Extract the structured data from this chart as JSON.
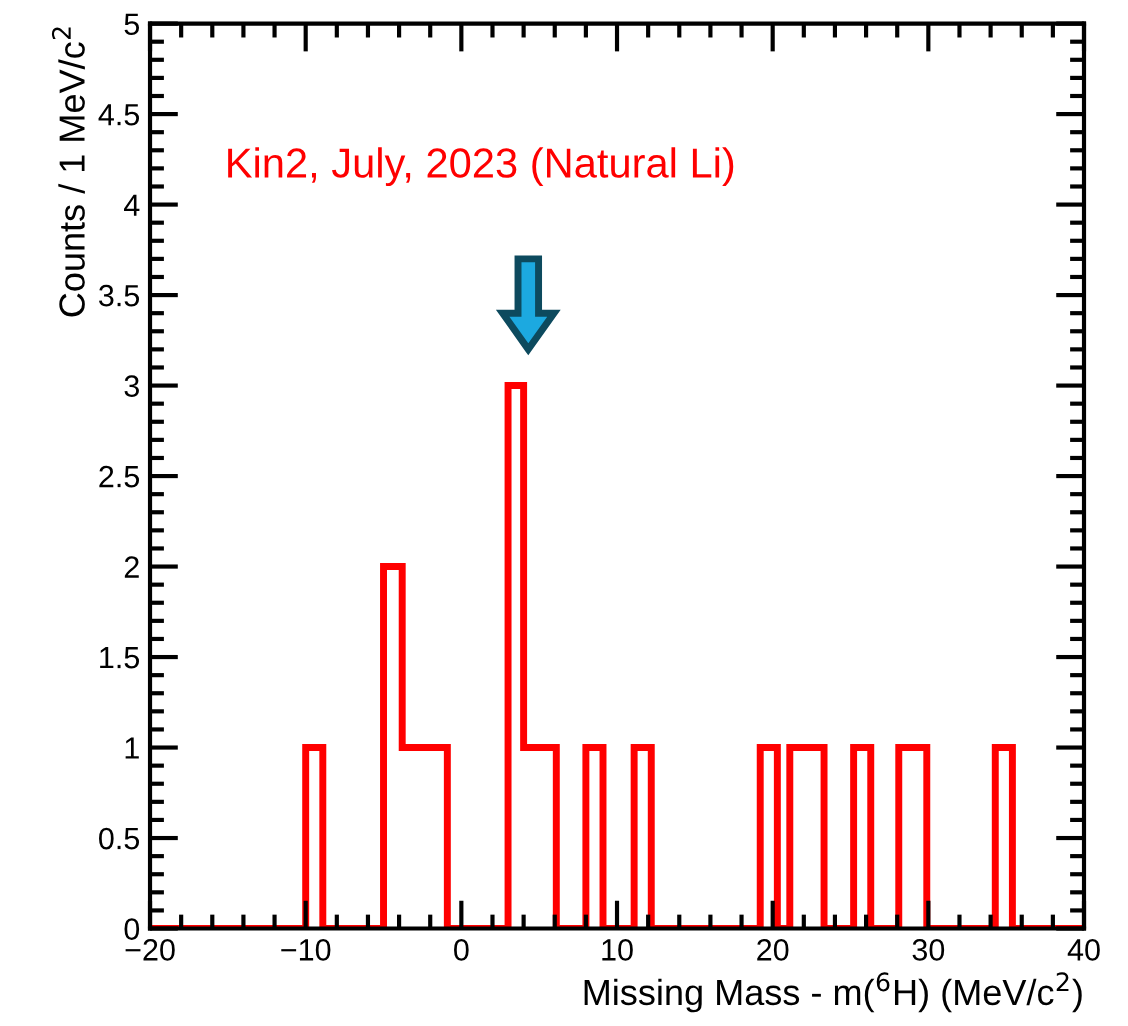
{
  "chart_data": {
    "type": "histogram",
    "xlabel": "Missing Mass - m($^{6}$H) (MeV/c$^{2}$)",
    "ylabel": "Counts / 1 MeV/c$^{2}$",
    "annotations": [
      "Kin2, July, 2023 (Natural Li)"
    ],
    "bins": [
      -20,
      -10.0,
      -8.9,
      -5.0,
      -3.8,
      -0.9,
      3.0,
      4.0,
      6.1,
      8.0,
      9.1,
      11.1,
      12.2,
      19.2,
      20.3,
      21.1,
      23.3,
      25.2,
      26.3,
      28.1,
      29.9,
      34.3,
      35.4,
      40
    ],
    "values": [
      0,
      1,
      0,
      2,
      1,
      0,
      3,
      1,
      0,
      1,
      0,
      1,
      0,
      1,
      0,
      1,
      0,
      1,
      0,
      1,
      0,
      1,
      0
    ],
    "color": "#ff0000",
    "xlim": [
      -20,
      40
    ],
    "xticks": [
      {
        "value": -20,
        "label": "−20"
      },
      {
        "value": -10,
        "label": "−10"
      },
      0,
      10,
      20,
      30,
      40
    ],
    "ylim": [
      0,
      5
    ],
    "yticks": [
      0,
      0.5,
      1,
      1.5,
      2,
      2.5,
      3,
      3.5,
      4,
      4.5,
      5
    ],
    "grid": false,
    "legend": false
  }
}
